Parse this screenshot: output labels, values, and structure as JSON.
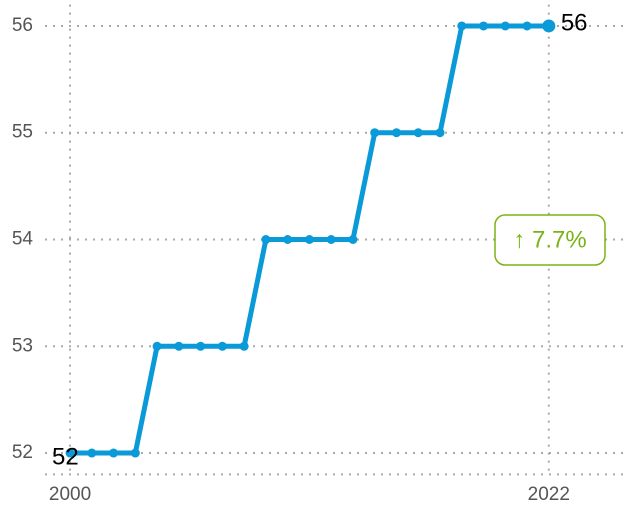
{
  "chart_data": {
    "type": "line",
    "x": [
      2000,
      2001,
      2002,
      2003,
      2004,
      2005,
      2006,
      2007,
      2008,
      2009,
      2010,
      2011,
      2012,
      2013,
      2014,
      2015,
      2016,
      2017,
      2018,
      2019,
      2020,
      2021,
      2022
    ],
    "series": [
      {
        "color": "#0a9ad8",
        "values": [
          52,
          52,
          52,
          52,
          53,
          53,
          53,
          53,
          53,
          54,
          54,
          54,
          54,
          54,
          55,
          55,
          55,
          55,
          56,
          56,
          56,
          56,
          56
        ],
        "value_labels": [
          "52",
          null,
          null,
          null,
          null,
          null,
          null,
          null,
          null,
          null,
          null,
          null,
          null,
          null,
          null,
          null,
          null,
          null,
          null,
          null,
          null,
          null,
          "56"
        ]
      }
    ],
    "xlim": [
      1998.85,
      2025.5
    ],
    "xticks": [
      2000,
      2022
    ],
    "ylim": [
      51.8,
      56.2
    ],
    "yticks": [
      52,
      53,
      54,
      55,
      56
    ],
    "grid": true,
    "change_label": "↑ 7.7%",
    "change_color": "#7ab317"
  }
}
